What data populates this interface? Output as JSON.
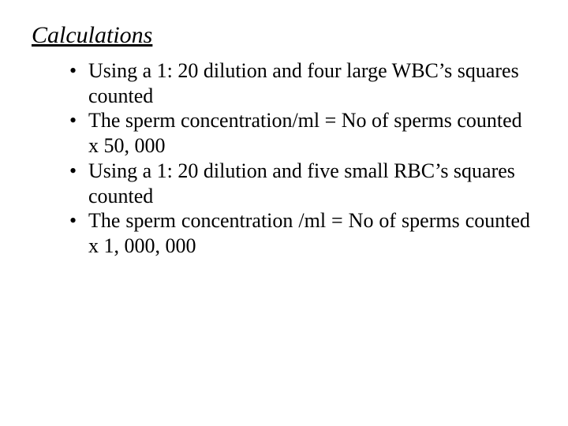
{
  "title": "Calculations",
  "bullets": [
    "Using a 1: 20 dilution and four large WBC’s squares counted",
    "The sperm concentration/ml = No of sperms counted x 50, 000",
    "Using a 1: 20 dilution and five small RBC’s squares counted",
    "The sperm concentration /ml = No of sperms counted x 1, 000, 000"
  ]
}
